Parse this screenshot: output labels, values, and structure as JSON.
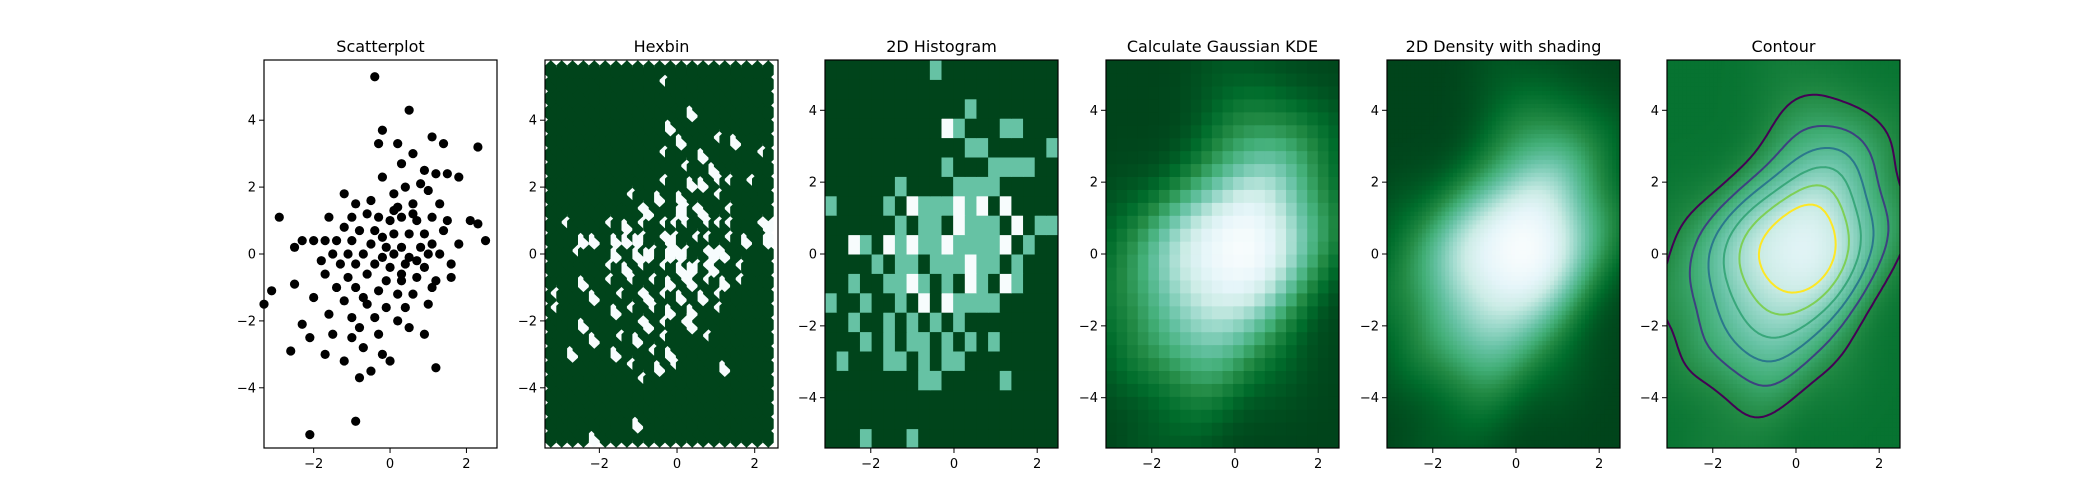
{
  "figure": {
    "background": "#ffffff",
    "colormaps": {
      "density": "BuGn",
      "contour_lines": "viridis"
    },
    "colors": {
      "scatter_points": "#000000",
      "density_low": "#00441b",
      "density_mid": "#41ab5d",
      "density_high": "#f7fcfd",
      "contour_low": "#440154",
      "contour_mid": "#21918c",
      "contour_high": "#fde725"
    }
  },
  "chart_data": [
    {
      "type": "scatter",
      "title": "Scatterplot",
      "xlabel": "",
      "ylabel": "",
      "xlim": [
        -3.3,
        2.8
      ],
      "ylim": [
        -5.8,
        5.8
      ],
      "xticks": [
        -2,
        0,
        2
      ],
      "yticks": [
        -4,
        -2,
        0,
        2,
        4
      ],
      "grid": false,
      "points": [
        [
          -0.4,
          5.3
        ],
        [
          0.5,
          4.3
        ],
        [
          -0.2,
          3.7
        ],
        [
          0.2,
          3.3
        ],
        [
          1.1,
          3.5
        ],
        [
          1.4,
          3.3
        ],
        [
          2.3,
          3.2
        ],
        [
          0.6,
          3.0
        ],
        [
          -0.3,
          3.3
        ],
        [
          0.9,
          2.5
        ],
        [
          1.2,
          2.4
        ],
        [
          1.5,
          2.4
        ],
        [
          1.8,
          2.3
        ],
        [
          0.3,
          2.7
        ],
        [
          0.8,
          2.1
        ],
        [
          -0.2,
          2.3
        ],
        [
          0.4,
          2.0
        ],
        [
          0.1,
          1.8
        ],
        [
          1.0,
          1.9
        ],
        [
          1.3,
          1.5
        ],
        [
          -1.2,
          1.8
        ],
        [
          -0.9,
          1.5
        ],
        [
          -0.5,
          1.6
        ],
        [
          0.2,
          1.4
        ],
        [
          0.6,
          1.5
        ],
        [
          -2.9,
          1.1
        ],
        [
          -1.6,
          1.1
        ],
        [
          -1.0,
          1.1
        ],
        [
          -0.6,
          1.2
        ],
        [
          -0.3,
          1.1
        ],
        [
          0.0,
          1.0
        ],
        [
          0.3,
          1.1
        ],
        [
          0.7,
          1.0
        ],
        [
          1.1,
          1.1
        ],
        [
          2.1,
          1.0
        ],
        [
          2.3,
          0.9
        ],
        [
          -1.2,
          0.8
        ],
        [
          -0.8,
          0.7
        ],
        [
          -0.4,
          0.7
        ],
        [
          0.1,
          0.6
        ],
        [
          0.5,
          0.6
        ],
        [
          0.9,
          0.6
        ],
        [
          1.4,
          0.7
        ],
        [
          -2.3,
          0.4
        ],
        [
          -2.0,
          0.4
        ],
        [
          -1.7,
          0.4
        ],
        [
          -1.4,
          0.4
        ],
        [
          -1.0,
          0.4
        ],
        [
          -0.5,
          0.3
        ],
        [
          -0.1,
          0.2
        ],
        [
          0.3,
          0.2
        ],
        [
          0.8,
          0.2
        ],
        [
          1.1,
          0.3
        ],
        [
          2.5,
          0.4
        ],
        [
          -2.5,
          0.2
        ],
        [
          -1.5,
          0.0
        ],
        [
          -1.1,
          0.0
        ],
        [
          -0.7,
          0.0
        ],
        [
          -0.2,
          -0.1
        ],
        [
          0.1,
          0.0
        ],
        [
          0.5,
          -0.1
        ],
        [
          1.0,
          0.0
        ],
        [
          1.3,
          0.0
        ],
        [
          -1.3,
          -0.3
        ],
        [
          -0.9,
          -0.3
        ],
        [
          -0.4,
          -0.3
        ],
        [
          0.0,
          -0.4
        ],
        [
          0.4,
          -0.3
        ],
        [
          0.9,
          -0.4
        ],
        [
          1.6,
          -0.3
        ],
        [
          -1.7,
          -0.6
        ],
        [
          -1.1,
          -0.7
        ],
        [
          -0.6,
          -0.6
        ],
        [
          -0.1,
          -0.8
        ],
        [
          0.3,
          -0.8
        ],
        [
          0.7,
          -0.7
        ],
        [
          1.2,
          -0.8
        ],
        [
          1.6,
          -0.7
        ],
        [
          -2.5,
          -0.9
        ],
        [
          -1.4,
          -1.0
        ],
        [
          -0.9,
          -1.0
        ],
        [
          -0.3,
          -1.1
        ],
        [
          0.2,
          -1.2
        ],
        [
          0.6,
          -1.2
        ],
        [
          1.1,
          -1.0
        ],
        [
          -3.1,
          -1.1
        ],
        [
          -2.0,
          -1.3
        ],
        [
          -1.2,
          -1.4
        ],
        [
          -0.6,
          -1.5
        ],
        [
          -0.1,
          -1.6
        ],
        [
          0.4,
          -1.6
        ],
        [
          1.0,
          -1.5
        ],
        [
          -3.3,
          -1.5
        ],
        [
          -1.6,
          -1.8
        ],
        [
          -1.0,
          -1.9
        ],
        [
          -0.4,
          -1.9
        ],
        [
          0.2,
          -2.0
        ],
        [
          -2.3,
          -2.1
        ],
        [
          -0.8,
          -2.2
        ],
        [
          -0.3,
          -2.4
        ],
        [
          0.5,
          -2.2
        ],
        [
          0.9,
          -2.4
        ],
        [
          -2.1,
          -2.5
        ],
        [
          -1.5,
          -2.4
        ],
        [
          -1.0,
          -2.5
        ],
        [
          -2.6,
          -2.9
        ],
        [
          -1.7,
          -3.0
        ],
        [
          -0.7,
          -2.8
        ],
        [
          -0.2,
          -3.0
        ],
        [
          -1.2,
          -3.2
        ],
        [
          -0.5,
          -3.5
        ],
        [
          0.0,
          -3.2
        ],
        [
          1.2,
          -3.4
        ],
        [
          -0.8,
          -3.7
        ],
        [
          -0.9,
          -5.0
        ],
        [
          -2.1,
          -5.4
        ],
        [
          0.7,
          -0.2
        ],
        [
          -0.2,
          0.5
        ],
        [
          0.3,
          -0.6
        ],
        [
          1.5,
          1.0
        ],
        [
          -1.8,
          -0.2
        ],
        [
          0.6,
          1.2
        ],
        [
          -0.7,
          -1.3
        ],
        [
          0.1,
          1.3
        ],
        [
          1.8,
          0.3
        ]
      ]
    },
    {
      "type": "heatmap",
      "subtype": "hexbin",
      "title": "Hexbin",
      "xlabel": "",
      "ylabel": "",
      "xlim": [
        -3.4,
        2.6
      ],
      "ylim": [
        -5.8,
        5.8
      ],
      "xticks": [
        -2,
        0,
        2
      ],
      "yticks": [
        -4,
        -2,
        0,
        2,
        4
      ],
      "colormap": "BuGn",
      "grid": false
    },
    {
      "type": "heatmap",
      "subtype": "hist2d",
      "title": "2D Histogram",
      "xlabel": "",
      "ylabel": "",
      "xlim": [
        -3.1,
        2.5
      ],
      "ylim": [
        -5.4,
        5.4
      ],
      "xticks": [
        -2,
        0,
        2
      ],
      "yticks": [
        -4,
        -2,
        0,
        2,
        4
      ],
      "colormap": "BuGn",
      "grid": false
    },
    {
      "type": "heatmap",
      "subtype": "gaussian-kde",
      "title": "Calculate Gaussian KDE",
      "xlabel": "",
      "ylabel": "",
      "xlim": [
        -3.1,
        2.5
      ],
      "ylim": [
        -5.4,
        5.4
      ],
      "xticks": [
        -2,
        0,
        2
      ],
      "yticks": [
        -4,
        -2,
        0,
        2,
        4
      ],
      "colormap": "BuGn",
      "grid": false
    },
    {
      "type": "heatmap",
      "subtype": "gouraud-shading",
      "title": "2D Density with shading",
      "xlabel": "",
      "ylabel": "",
      "xlim": [
        -3.1,
        2.5
      ],
      "ylim": [
        -5.4,
        5.4
      ],
      "xticks": [
        -2,
        0,
        2
      ],
      "yticks": [
        -4,
        -2,
        0,
        2,
        4
      ],
      "colormap": "BuGn",
      "grid": false
    },
    {
      "type": "heatmap",
      "subtype": "contour",
      "title": "Contour",
      "xlabel": "",
      "ylabel": "",
      "xlim": [
        -3.1,
        2.5
      ],
      "ylim": [
        -5.4,
        5.4
      ],
      "xticks": [
        -2,
        0,
        2
      ],
      "yticks": [
        -4,
        -2,
        0,
        2,
        4
      ],
      "colormap": "BuGn",
      "contour_colormap": "viridis",
      "contour_levels": 6,
      "grid": false
    }
  ]
}
